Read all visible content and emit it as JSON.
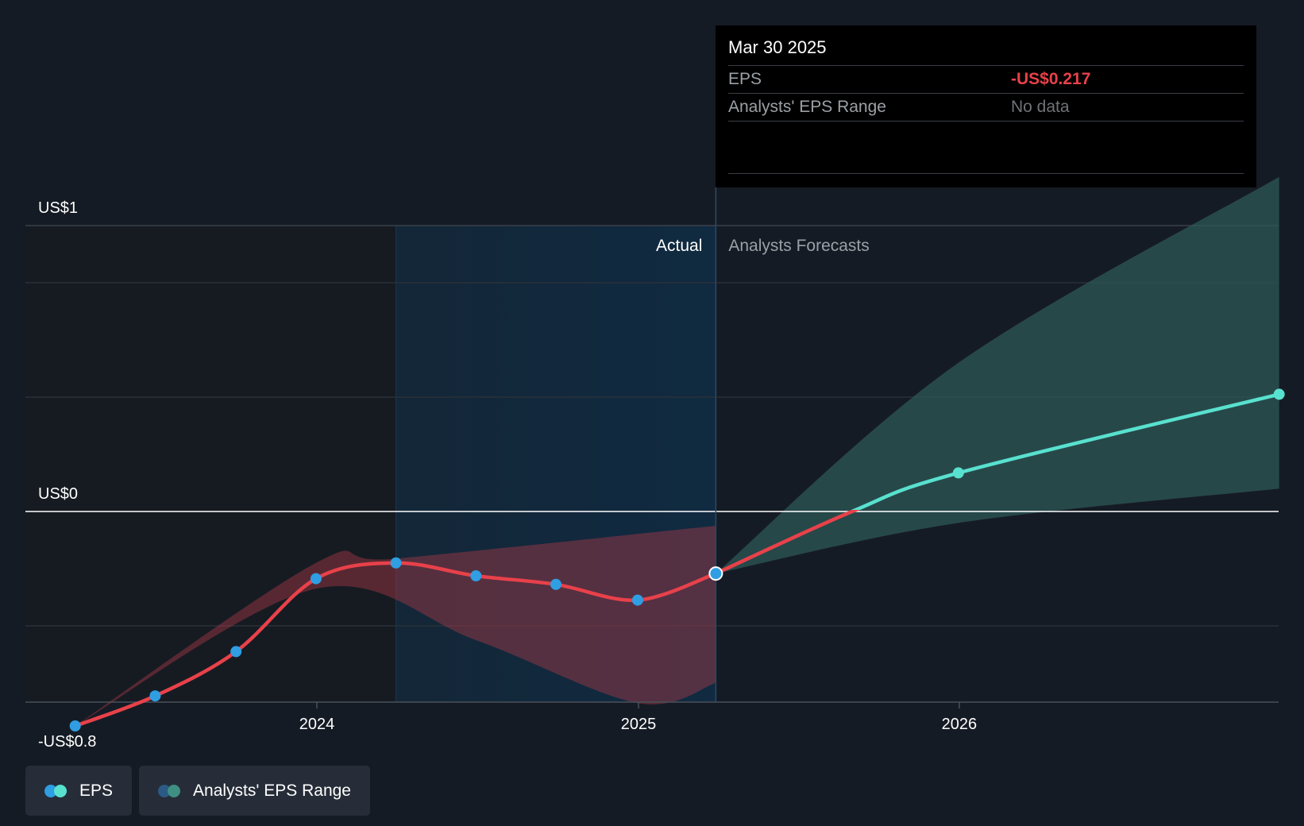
{
  "chart_data": {
    "type": "line",
    "y_ticks": [
      {
        "label": "US$1",
        "value": 1
      },
      {
        "label": "US$0",
        "value": 0
      },
      {
        "label": "-US$0.8",
        "value": -0.8
      }
    ],
    "ylim": [
      -0.8,
      1
    ],
    "x_ticks": [
      {
        "label": "2024",
        "value": "2024-01-01"
      },
      {
        "label": "2025",
        "value": "2025-01-01"
      },
      {
        "label": "2026",
        "value": "2026-01-01"
      }
    ],
    "xlim": [
      "2023-03-01",
      "2026-12-31"
    ],
    "grid": true,
    "sections": {
      "actual_label": "Actual",
      "forecast_label": "Analysts Forecasts",
      "highlight_start": "2024-03-31",
      "divider_date": "2025-03-30"
    },
    "series": [
      {
        "name": "EPS",
        "type": "actual",
        "color": "#e8414a",
        "marker_color": "#2f9ee3",
        "points": [
          {
            "x": "2023-04-01",
            "y": -0.75
          },
          {
            "x": "2023-07-01",
            "y": -0.645
          },
          {
            "x": "2023-10-01",
            "y": -0.49
          },
          {
            "x": "2023-12-31",
            "y": -0.235
          },
          {
            "x": "2024-03-31",
            "y": -0.18
          },
          {
            "x": "2024-06-30",
            "y": -0.225
          },
          {
            "x": "2024-09-29",
            "y": -0.255
          },
          {
            "x": "2024-12-31",
            "y": -0.31
          },
          {
            "x": "2025-03-30",
            "y": -0.217
          }
        ]
      },
      {
        "name": "EPS",
        "type": "forecast",
        "color": "#58e1cf",
        "points": [
          {
            "x": "2025-03-30",
            "y": -0.217
          },
          {
            "x": "2025-09-01",
            "y": 0.0
          },
          {
            "x": "2025-12-31",
            "y": 0.135
          },
          {
            "x": "2026-12-31",
            "y": 0.41
          }
        ]
      },
      {
        "name": "Analysts' EPS Range",
        "type": "forecast_range",
        "color": "#2e5856",
        "upper": [
          {
            "x": "2025-03-30",
            "y": -0.217
          },
          {
            "x": "2025-12-31",
            "y": 0.52
          },
          {
            "x": "2026-12-31",
            "y": 1.17
          }
        ],
        "lower": [
          {
            "x": "2025-03-30",
            "y": -0.217
          },
          {
            "x": "2025-12-31",
            "y": -0.04
          },
          {
            "x": "2026-12-31",
            "y": 0.08
          }
        ]
      },
      {
        "name": "Analysts' EPS Range",
        "type": "past_range",
        "color": "#a83a48",
        "upper": [
          {
            "x": "2023-04-01",
            "y": -0.75
          },
          {
            "x": "2023-12-31",
            "y": -0.18
          },
          {
            "x": "2024-03-31",
            "y": -0.165
          },
          {
            "x": "2025-03-30",
            "y": -0.05
          }
        ],
        "lower": [
          {
            "x": "2023-04-01",
            "y": -0.75
          },
          {
            "x": "2023-12-31",
            "y": -0.27
          },
          {
            "x": "2024-06-30",
            "y": -0.45
          },
          {
            "x": "2024-12-31",
            "y": -0.67
          },
          {
            "x": "2025-03-30",
            "y": -0.6
          }
        ]
      }
    ]
  },
  "tooltip": {
    "date": "Mar 30 2025",
    "rows": [
      {
        "label": "EPS",
        "value": "-US$0.217"
      },
      {
        "label": "Analysts' EPS Range",
        "value": "No data"
      }
    ]
  },
  "legend": [
    {
      "label": "EPS",
      "dot_colors": [
        "#2f9ee3",
        "#58e1cf"
      ]
    },
    {
      "label": "Analysts' EPS Range",
      "dot_colors": [
        "#2b5a84",
        "#3f8f82"
      ]
    }
  ]
}
